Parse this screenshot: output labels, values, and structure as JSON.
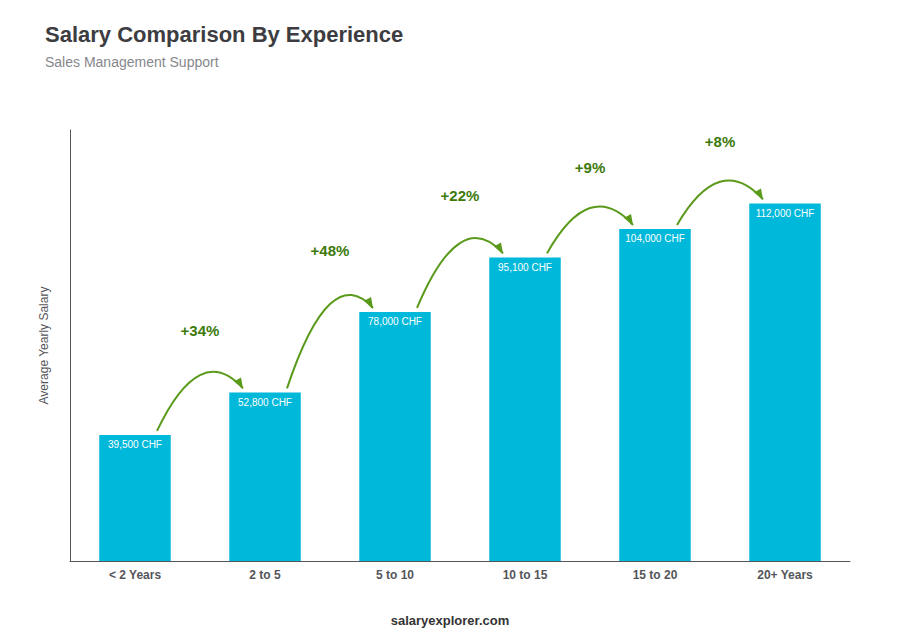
{
  "chart_data": {
    "type": "bar",
    "title": "Salary Comparison By Experience",
    "subtitle": "Sales Management Support",
    "ylabel": "Average Yearly Salary",
    "categories": [
      "< 2 Years",
      "2 to 5",
      "5 to 10",
      "10 to 15",
      "15 to 20",
      "20+ Years"
    ],
    "values": [
      39500,
      52800,
      78000,
      95100,
      104000,
      112000
    ],
    "value_labels": [
      "39,500 CHF",
      "52,800 CHF",
      "78,000 CHF",
      "95,100 CHF",
      "104,000 CHF",
      "112,000 CHF"
    ],
    "data_labels": true,
    "annotations": [
      "+34%",
      "+48%",
      "+22%",
      "+9%",
      "+8%"
    ],
    "footer": "salaryexplorer.com",
    "color": "#00b8d9",
    "ylim": [
      0,
      135000
    ],
    "grid": false,
    "tick_labels": "x"
  }
}
